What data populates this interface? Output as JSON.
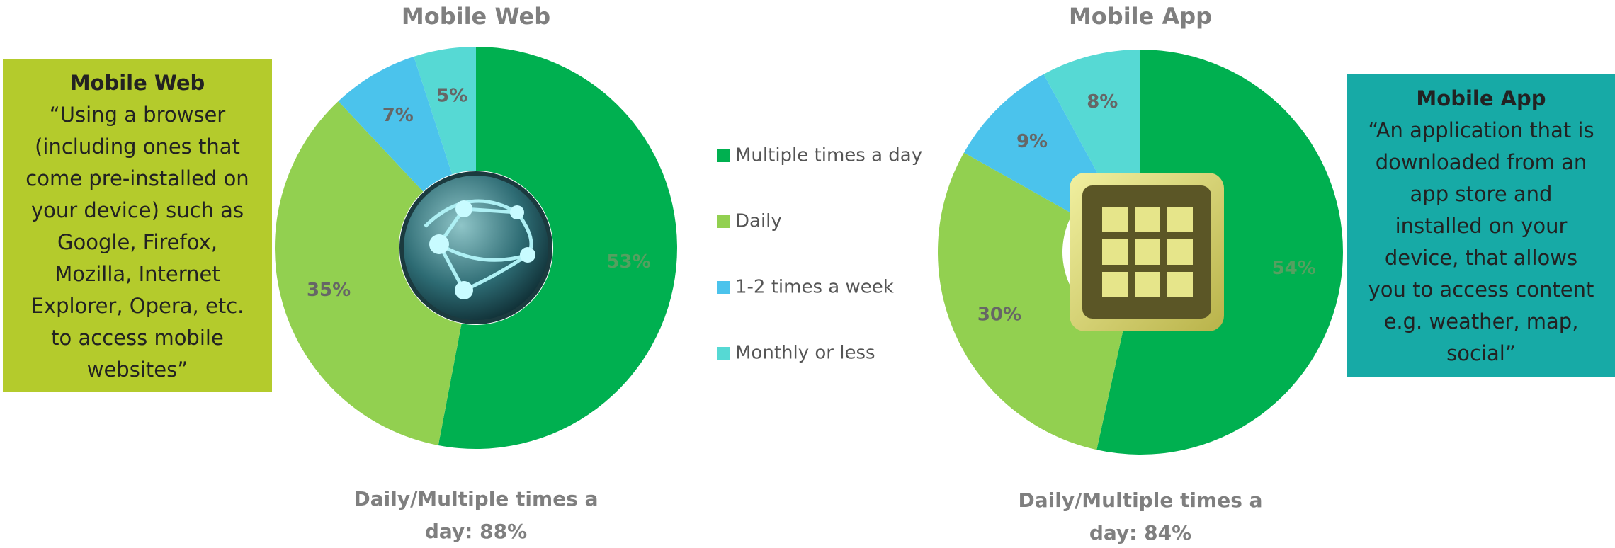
{
  "chart_data": [
    {
      "type": "donut",
      "title": "Mobile Web",
      "categories": [
        "Multiple times a day",
        "Daily",
        "1-2 times a week",
        "Monthly or less"
      ],
      "values": [
        53,
        35,
        7,
        5
      ],
      "value_labels": [
        "53%",
        "35%",
        "7%",
        "5%"
      ],
      "colors": [
        "#00b050",
        "#92d050",
        "#4bc3ec",
        "#56d9d4"
      ],
      "annotation": "Daily/Multiple times a day: 88%"
    },
    {
      "type": "donut",
      "title": "Mobile App",
      "categories": [
        "Multiple times a day",
        "Daily",
        "1-2 times a week",
        "Monthly or less"
      ],
      "values": [
        54,
        30,
        9,
        8
      ],
      "value_labels": [
        "54%",
        "30%",
        "9%",
        "8%"
      ],
      "colors": [
        "#00b050",
        "#92d050",
        "#4bc3ec",
        "#56d9d4"
      ],
      "annotation": "Daily/Multiple times a day: 84%"
    }
  ],
  "boxes": [
    {
      "title": "Mobile Web",
      "lines": [
        "“Using a browser",
        "(including ones that",
        "come pre-installed on",
        "your device)  such as",
        "Google, Firefox,",
        "Mozilla, Internet",
        "Explorer, Opera,  etc.",
        "to access mobile",
        "websites”"
      ]
    },
    {
      "title": "Mobile App",
      "lines": [
        "“An application that is",
        "downloaded from an",
        "app store and",
        "installed on your",
        "device, that allows",
        "you to access content",
        "e.g. weather, map,",
        "social”"
      ]
    }
  ]
}
